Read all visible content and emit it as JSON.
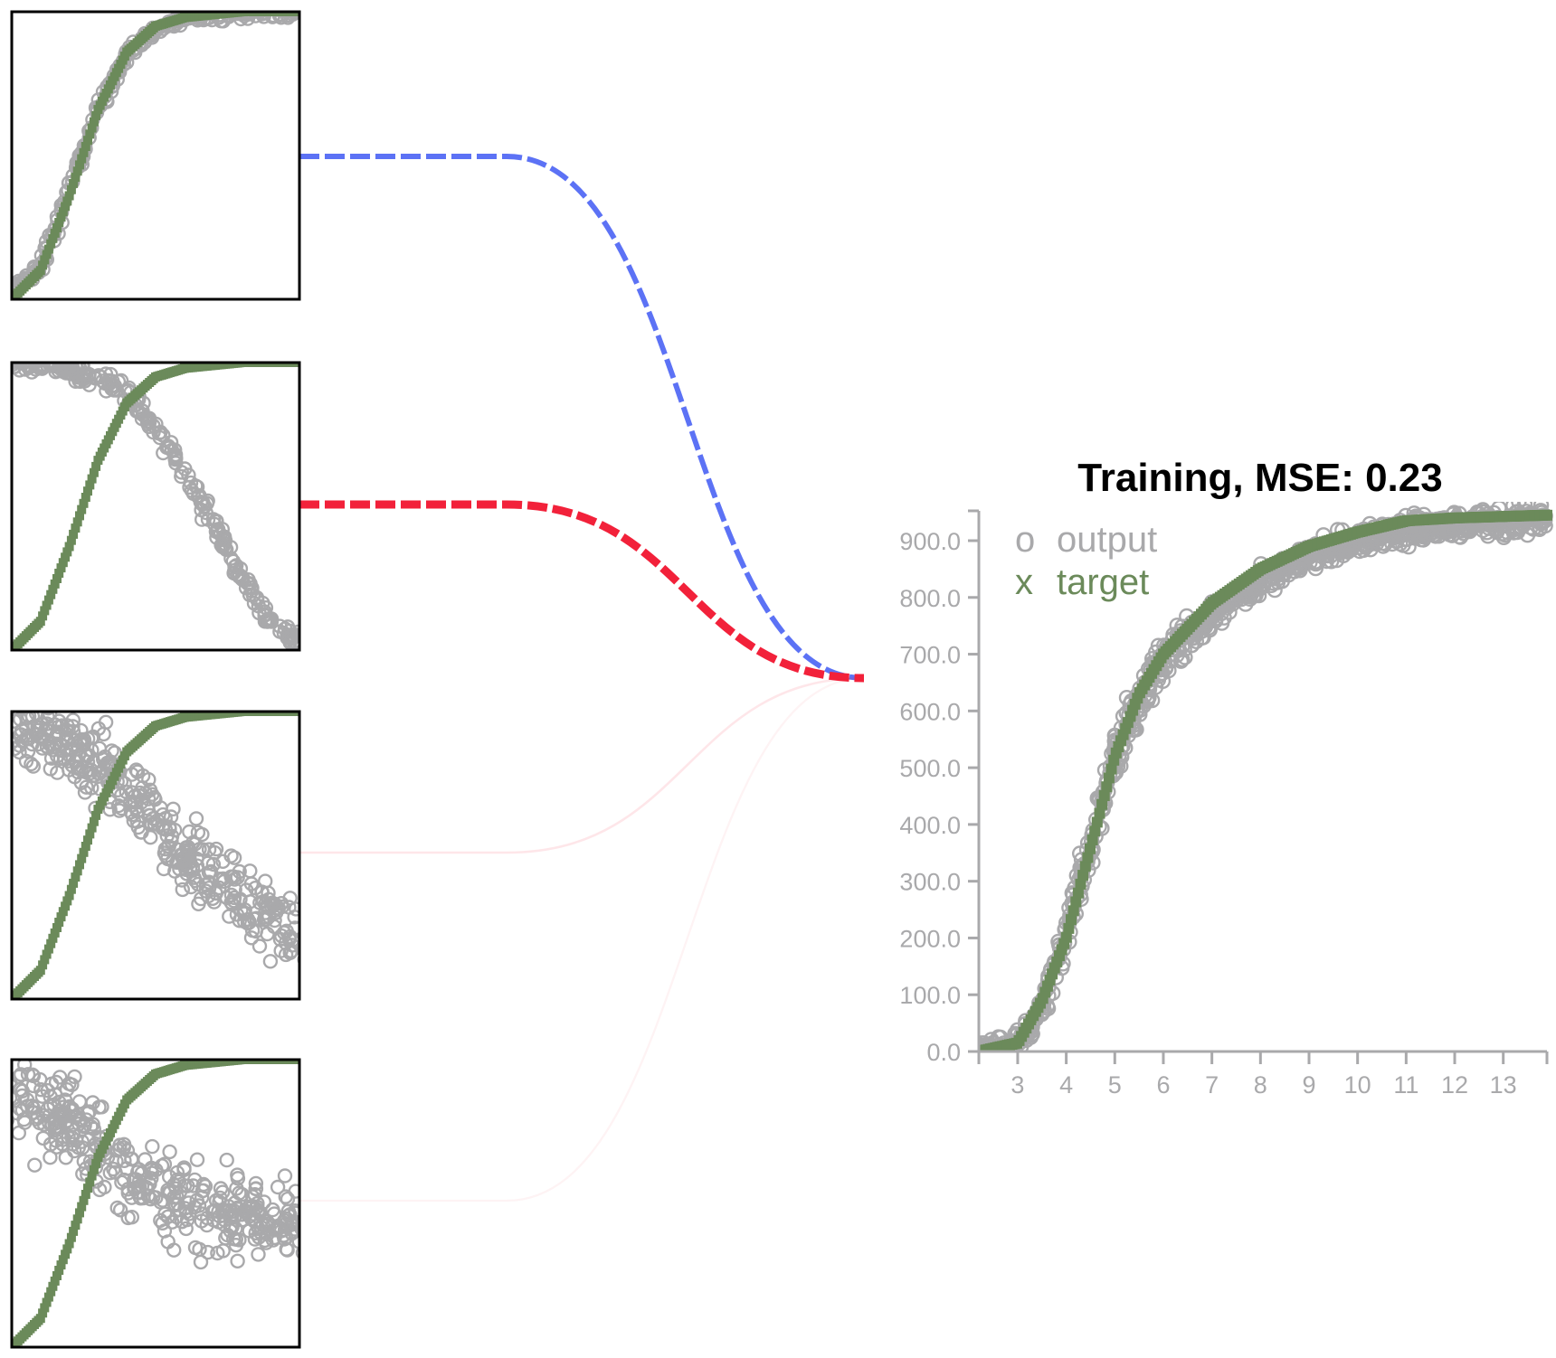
{
  "colors": {
    "output": "#a9a9ab",
    "target": "#6b8a5a",
    "axis": "#a9a9ab",
    "positive_weight": "#2b47f2",
    "negative_weight": "#f2213a",
    "frame": "#000000",
    "title": "#000000"
  },
  "chart_data": [
    {
      "id": "neuron-1",
      "type": "scatter",
      "description": "hidden neuron 1 output vs target",
      "series": [
        {
          "name": "output",
          "pattern": "rising sigmoid",
          "values": [
            [
              0.0,
              0.02
            ],
            [
              0.1,
              0.12
            ],
            [
              0.2,
              0.38
            ],
            [
              0.3,
              0.66
            ],
            [
              0.4,
              0.85
            ],
            [
              0.5,
              0.94
            ],
            [
              0.6,
              0.98
            ],
            [
              0.8,
              1.0
            ],
            [
              1.0,
              1.0
            ]
          ]
        },
        {
          "name": "target",
          "pattern": "rising sigmoid",
          "values": [
            [
              0.0,
              0.0
            ],
            [
              0.1,
              0.1
            ],
            [
              0.2,
              0.36
            ],
            [
              0.3,
              0.66
            ],
            [
              0.4,
              0.86
            ],
            [
              0.5,
              0.95
            ],
            [
              0.6,
              0.98
            ],
            [
              0.8,
              1.0
            ],
            [
              1.0,
              1.0
            ]
          ]
        }
      ],
      "weight_sign": "positive",
      "weight_strength": 0.55
    },
    {
      "id": "neuron-2",
      "type": "scatter",
      "description": "hidden neuron 2 output vs target",
      "series": [
        {
          "name": "output",
          "pattern": "falling sigmoid",
          "values": [
            [
              0.0,
              1.0
            ],
            [
              0.2,
              0.98
            ],
            [
              0.4,
              0.9
            ],
            [
              0.55,
              0.7
            ],
            [
              0.7,
              0.45
            ],
            [
              0.8,
              0.25
            ],
            [
              0.9,
              0.1
            ],
            [
              1.0,
              0.02
            ]
          ]
        },
        {
          "name": "target",
          "pattern": "rising sigmoid",
          "values": [
            [
              0.0,
              0.0
            ],
            [
              0.1,
              0.1
            ],
            [
              0.2,
              0.36
            ],
            [
              0.3,
              0.66
            ],
            [
              0.4,
              0.86
            ],
            [
              0.5,
              0.95
            ],
            [
              0.6,
              0.98
            ],
            [
              0.8,
              1.0
            ],
            [
              1.0,
              1.0
            ]
          ]
        }
      ],
      "weight_sign": "negative",
      "weight_strength": 1.0
    },
    {
      "id": "neuron-3",
      "type": "scatter",
      "description": "hidden neuron 3 output vs target",
      "series": [
        {
          "name": "output",
          "pattern": "noisy falling cloud",
          "values": [
            [
              0.0,
              0.95
            ],
            [
              0.2,
              0.9
            ],
            [
              0.4,
              0.75
            ],
            [
              0.6,
              0.5
            ],
            [
              0.8,
              0.35
            ],
            [
              1.0,
              0.2
            ]
          ]
        },
        {
          "name": "target",
          "pattern": "rising sigmoid",
          "values": [
            [
              0.0,
              0.0
            ],
            [
              0.1,
              0.1
            ],
            [
              0.2,
              0.36
            ],
            [
              0.3,
              0.66
            ],
            [
              0.4,
              0.86
            ],
            [
              0.5,
              0.95
            ],
            [
              0.6,
              0.98
            ],
            [
              0.8,
              1.0
            ],
            [
              1.0,
              1.0
            ]
          ]
        }
      ],
      "weight_sign": "negative",
      "weight_strength": 0.08
    },
    {
      "id": "neuron-4",
      "type": "scatter",
      "description": "hidden neuron 4 output vs target",
      "series": [
        {
          "name": "output",
          "pattern": "noisy cloud",
          "values": [
            [
              0.0,
              0.85
            ],
            [
              0.2,
              0.8
            ],
            [
              0.4,
              0.6
            ],
            [
              0.6,
              0.5
            ],
            [
              0.8,
              0.45
            ],
            [
              1.0,
              0.4
            ]
          ]
        },
        {
          "name": "target",
          "pattern": "rising sigmoid",
          "values": [
            [
              0.0,
              0.0
            ],
            [
              0.1,
              0.1
            ],
            [
              0.2,
              0.36
            ],
            [
              0.3,
              0.66
            ],
            [
              0.4,
              0.86
            ],
            [
              0.5,
              0.95
            ],
            [
              0.6,
              0.98
            ],
            [
              0.8,
              1.0
            ],
            [
              1.0,
              1.0
            ]
          ]
        }
      ],
      "weight_sign": "negative",
      "weight_strength": 0.04
    },
    {
      "id": "training-output",
      "type": "scatter",
      "title": "Training, MSE: 0.23",
      "xlabel": "",
      "ylabel": "",
      "xlim": [
        2.2,
        13.9
      ],
      "ylim": [
        0,
        900
      ],
      "x_ticks": [
        "3",
        "4",
        "5",
        "6",
        "7",
        "8",
        "9",
        "10",
        "11",
        "12",
        "13"
      ],
      "y_ticks": [
        "0.0",
        "100.0",
        "200.0",
        "300.0",
        "400.0",
        "500.0",
        "600.0",
        "700.0",
        "800.0",
        "900.0"
      ],
      "grid": false,
      "legend": {
        "placement": "top-left",
        "entries": [
          {
            "marker": "o",
            "label": "output"
          },
          {
            "marker": "x",
            "label": "target"
          }
        ]
      },
      "series": [
        {
          "name": "output",
          "x": [
            2.2,
            3,
            3.5,
            4,
            4.5,
            5,
            5.5,
            6,
            7,
            8,
            9,
            10,
            11,
            12,
            13.9
          ],
          "y": [
            0,
            10,
            80,
            210,
            360,
            520,
            620,
            690,
            770,
            830,
            870,
            900,
            920,
            930,
            940
          ]
        },
        {
          "name": "target",
          "x": [
            2.2,
            3,
            3.5,
            4,
            4.5,
            5,
            5.5,
            6,
            7,
            8,
            9,
            10,
            11,
            12,
            13.9
          ],
          "y": [
            0,
            15,
            90,
            200,
            360,
            520,
            630,
            700,
            790,
            850,
            890,
            915,
            935,
            940,
            945
          ]
        }
      ]
    }
  ]
}
